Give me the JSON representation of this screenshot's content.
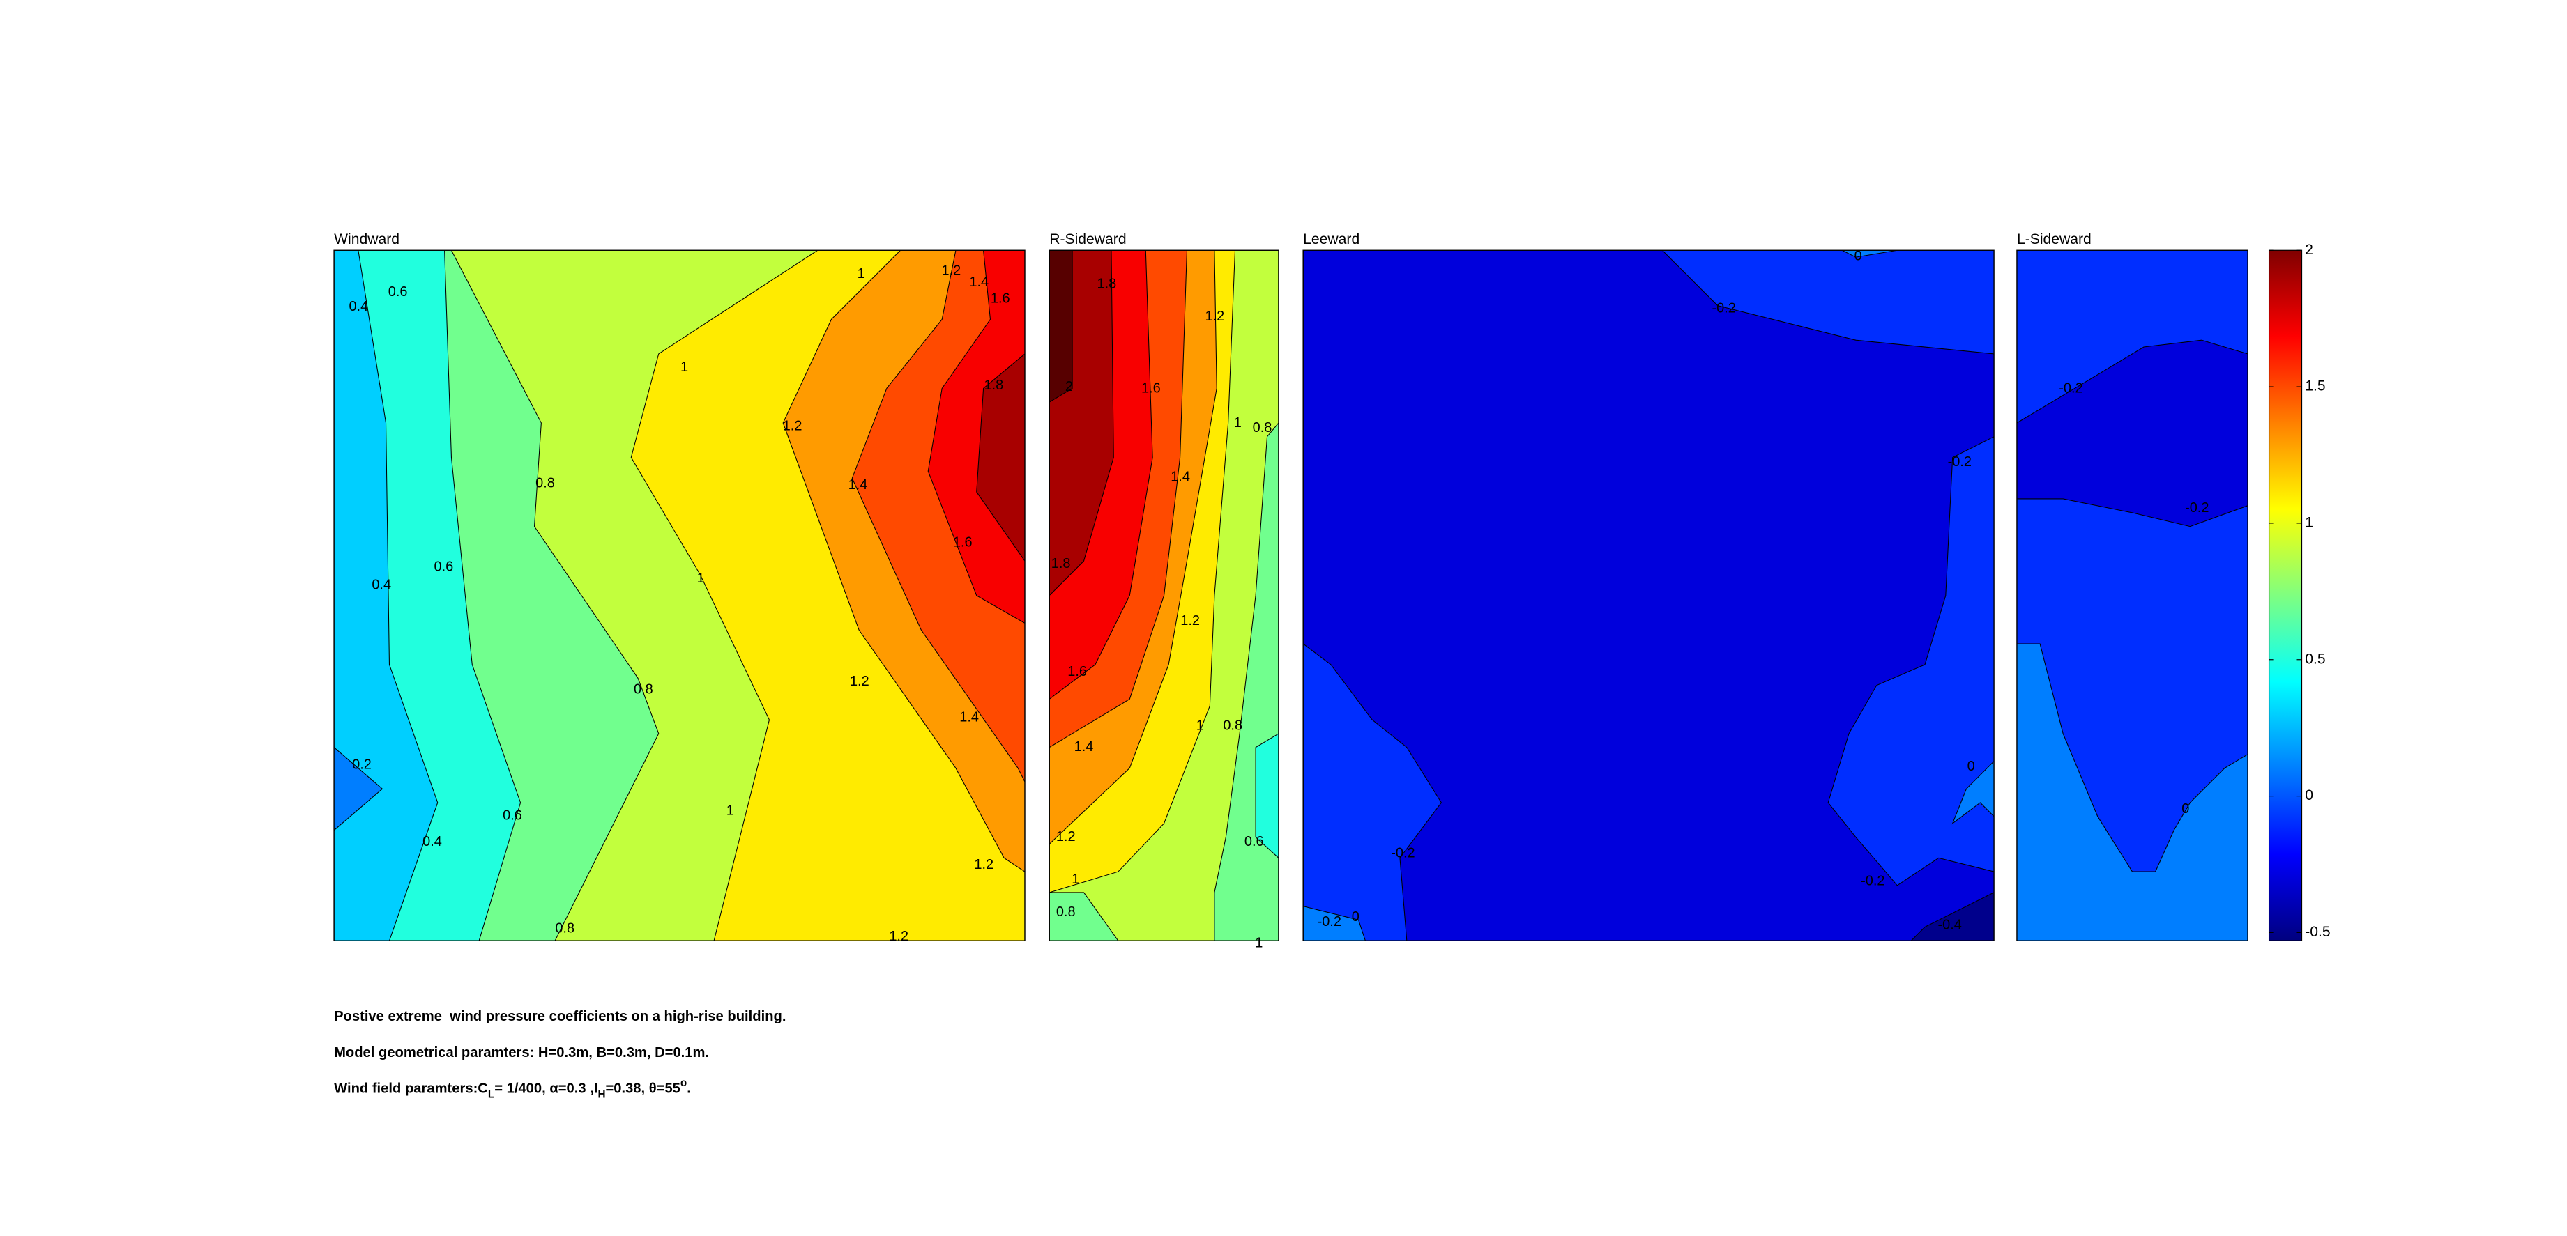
{
  "chart_data": {
    "type": "contour",
    "colormap": "jet",
    "clim": [
      -0.53,
      2
    ],
    "cticks": [
      2,
      1.5,
      1,
      0.5,
      0,
      -0.5
    ],
    "panels": [
      {
        "title": "Windward",
        "bands": [
          0,
          0.2,
          0.4,
          0.6,
          0.8,
          1,
          1.2,
          1.4,
          1.6,
          1.8
        ],
        "contour_labels": [
          0.4,
          0.6,
          1,
          1.2,
          1.4,
          1.6,
          1,
          1.8,
          1.2,
          0.8,
          1.4,
          1.6,
          0.4,
          0.6,
          1,
          0.8,
          1.2,
          1.4,
          0.2,
          1,
          0.6,
          0.4,
          1.2,
          0.8,
          1.2
        ]
      },
      {
        "title": "R-Sideward",
        "bands": [
          0.4,
          0.6,
          0.8,
          1,
          1.2,
          1.4,
          1.6,
          1.8,
          2
        ],
        "contour_labels": [
          1.8,
          1.2,
          2,
          1.6,
          1,
          0.8,
          1.4,
          1.8,
          1.2,
          1.6,
          1,
          0.8,
          1.4,
          1.2,
          0.6,
          1,
          0.8,
          1
        ]
      },
      {
        "title": "Leeward",
        "bands": [
          -0.6,
          -0.4,
          -0.2,
          0
        ],
        "contour_labels": [
          0,
          -0.2,
          -0.2,
          0,
          -0.2,
          -0.2,
          -0.2,
          0,
          -0.4
        ]
      },
      {
        "title": "L-Sideward",
        "bands": [
          -0.2,
          -0.4,
          0
        ],
        "contour_labels": [
          -0.2,
          -0.2,
          0
        ]
      }
    ],
    "caption": {
      "line1": "Postive extreme  wind pressure coefficients on a high-rise building.",
      "line2": "Model geometrical paramters: H=0.3m, B=0.3m, D=0.1m.",
      "line3": [
        "Wind field paramters:C",
        "L",
        "= 1/400, α=0.3 ,I",
        "H",
        "=0.38, θ=55",
        "o",
        "."
      ]
    }
  }
}
